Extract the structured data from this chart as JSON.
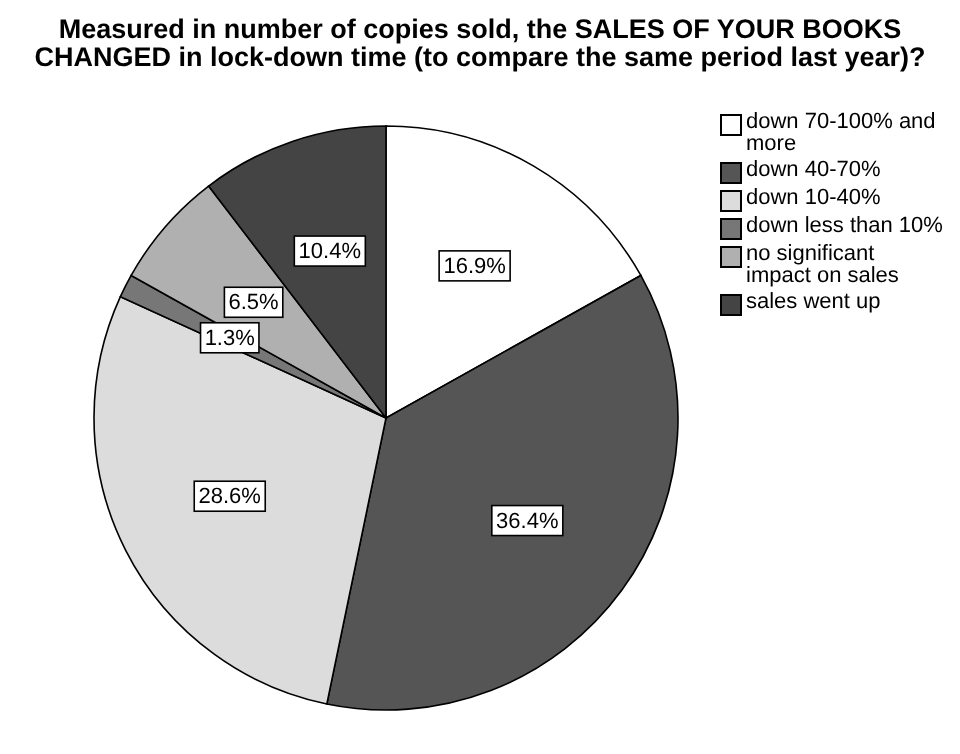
{
  "chart_data": {
    "type": "pie",
    "title": "Measured in number of copies sold, the SALES OF YOUR BOOKS CHANGED in lock-down time (to compare the same period last year)?",
    "categories": [
      "down 70-100% and more",
      "down 40-70%",
      "down 10-40%",
      "down less than 10%",
      "no significant impact on sales",
      "sales went up"
    ],
    "values": [
      16.9,
      36.4,
      28.6,
      1.3,
      6.5,
      10.4
    ],
    "colors": [
      "#ffffff",
      "#555555",
      "#dcdcdc",
      "#777777",
      "#b0b0b0",
      "#444444"
    ],
    "value_labels": [
      "16.9%",
      "36.4%",
      "28.6%",
      "1.3%",
      "6.5%",
      "10.4%"
    ],
    "legend": "right"
  }
}
